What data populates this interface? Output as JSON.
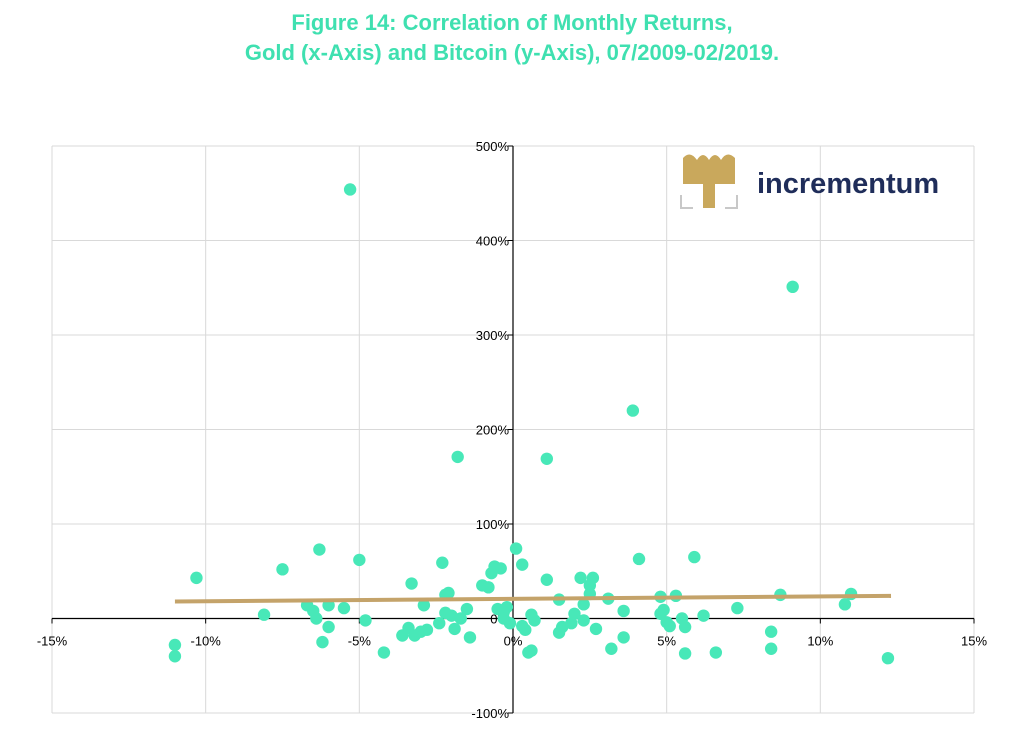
{
  "colors": {
    "title": "#3fe0b0",
    "point": "#48e8b8",
    "trend": "#c4a36a",
    "grid": "#d9d9d9",
    "axis": "#000000",
    "logo_text": "#1f2d5a",
    "logo_gold": "#c9a85c"
  },
  "logo": {
    "text": "incrementum",
    "icon": "tree-icon"
  },
  "chart_data": {
    "type": "scatter",
    "title": "Figure 14: Correlation of Monthly Returns,",
    "subtitle": "Gold (x-Axis) and Bitcoin (y-Axis), 07/2009-02/2019.",
    "xlabel": "",
    "ylabel": "",
    "xlim": [
      -15,
      15
    ],
    "ylim": [
      -100,
      500
    ],
    "grid": true,
    "x_ticks": [
      -15,
      -10,
      -5,
      0,
      5,
      10,
      15
    ],
    "y_ticks": [
      -100,
      0,
      100,
      200,
      300,
      400,
      500
    ],
    "x_tick_labels": [
      "-15%",
      "-10%",
      "-5%",
      "0%",
      "5%",
      "10%",
      "15%"
    ],
    "y_tick_labels": [
      "-100%",
      "0%",
      "100%",
      "200%",
      "300%",
      "400%",
      "500%"
    ],
    "trendline": {
      "x": [
        -11,
        12.3
      ],
      "y": [
        18,
        24
      ]
    },
    "points": [
      {
        "x": -5.3,
        "y": 454
      },
      {
        "x": 9.1,
        "y": 351
      },
      {
        "x": 3.9,
        "y": 220
      },
      {
        "x": -1.8,
        "y": 171
      },
      {
        "x": 1.1,
        "y": 169
      },
      {
        "x": -10.3,
        "y": 43
      },
      {
        "x": -7.5,
        "y": 52
      },
      {
        "x": -6.3,
        "y": 73
      },
      {
        "x": -5.0,
        "y": 62
      },
      {
        "x": -8.1,
        "y": 4
      },
      {
        "x": -6.7,
        "y": 14
      },
      {
        "x": -6.5,
        "y": 8
      },
      {
        "x": -6.4,
        "y": 0
      },
      {
        "x": -6.0,
        "y": 14
      },
      {
        "x": -6.2,
        "y": -25
      },
      {
        "x": -6.0,
        "y": -9
      },
      {
        "x": -5.5,
        "y": 11
      },
      {
        "x": -4.8,
        "y": -2
      },
      {
        "x": -11.0,
        "y": -28
      },
      {
        "x": -11.0,
        "y": -40
      },
      {
        "x": -4.2,
        "y": -36
      },
      {
        "x": -3.6,
        "y": -18
      },
      {
        "x": -3.4,
        "y": -10
      },
      {
        "x": -3.2,
        "y": -18
      },
      {
        "x": -3.0,
        "y": -14
      },
      {
        "x": -2.9,
        "y": 14
      },
      {
        "x": -2.8,
        "y": -12
      },
      {
        "x": -3.3,
        "y": 37
      },
      {
        "x": -2.4,
        "y": -5
      },
      {
        "x": -2.3,
        "y": 59
      },
      {
        "x": -2.2,
        "y": 25
      },
      {
        "x": -2.1,
        "y": 27
      },
      {
        "x": -2.2,
        "y": 6
      },
      {
        "x": -2.0,
        "y": 3
      },
      {
        "x": -1.9,
        "y": -11
      },
      {
        "x": -1.7,
        "y": 0
      },
      {
        "x": -1.5,
        "y": 10
      },
      {
        "x": -1.4,
        "y": -20
      },
      {
        "x": -1.0,
        "y": 35
      },
      {
        "x": -0.8,
        "y": 33
      },
      {
        "x": -0.7,
        "y": 48
      },
      {
        "x": -0.6,
        "y": 55
      },
      {
        "x": -0.4,
        "y": 53
      },
      {
        "x": -0.5,
        "y": 10
      },
      {
        "x": -0.3,
        "y": 7
      },
      {
        "x": -0.2,
        "y": 12
      },
      {
        "x": -0.3,
        "y": 0
      },
      {
        "x": -0.1,
        "y": -5
      },
      {
        "x": 0.1,
        "y": 74
      },
      {
        "x": 0.3,
        "y": -8
      },
      {
        "x": 0.3,
        "y": 57
      },
      {
        "x": 0.4,
        "y": -12
      },
      {
        "x": 0.5,
        "y": -36
      },
      {
        "x": 0.6,
        "y": -34
      },
      {
        "x": 0.6,
        "y": 4
      },
      {
        "x": 0.7,
        "y": -2
      },
      {
        "x": 1.1,
        "y": 41
      },
      {
        "x": 1.5,
        "y": 20
      },
      {
        "x": 1.5,
        "y": -15
      },
      {
        "x": 1.6,
        "y": -9
      },
      {
        "x": 1.9,
        "y": -5
      },
      {
        "x": 2.0,
        "y": 5
      },
      {
        "x": 2.2,
        "y": 43
      },
      {
        "x": 2.3,
        "y": 15
      },
      {
        "x": 2.3,
        "y": -2
      },
      {
        "x": 2.5,
        "y": 26
      },
      {
        "x": 2.5,
        "y": 35
      },
      {
        "x": 2.6,
        "y": 43
      },
      {
        "x": 2.7,
        "y": -11
      },
      {
        "x": 3.1,
        "y": 21
      },
      {
        "x": 3.2,
        "y": -32
      },
      {
        "x": 3.6,
        "y": 8
      },
      {
        "x": 3.6,
        "y": -20
      },
      {
        "x": 4.1,
        "y": 63
      },
      {
        "x": 4.8,
        "y": 23
      },
      {
        "x": 4.8,
        "y": 5
      },
      {
        "x": 4.9,
        "y": 9
      },
      {
        "x": 5.0,
        "y": -4
      },
      {
        "x": 5.1,
        "y": -8
      },
      {
        "x": 5.3,
        "y": 24
      },
      {
        "x": 5.5,
        "y": 0
      },
      {
        "x": 5.6,
        "y": -9
      },
      {
        "x": 5.6,
        "y": -37
      },
      {
        "x": 5.9,
        "y": 65
      },
      {
        "x": 6.2,
        "y": 3
      },
      {
        "x": 6.6,
        "y": -36
      },
      {
        "x": 7.3,
        "y": 11
      },
      {
        "x": 8.4,
        "y": -14
      },
      {
        "x": 8.4,
        "y": -32
      },
      {
        "x": 8.7,
        "y": 25
      },
      {
        "x": 10.8,
        "y": 15
      },
      {
        "x": 11.0,
        "y": 26
      },
      {
        "x": 12.2,
        "y": -42
      }
    ]
  }
}
